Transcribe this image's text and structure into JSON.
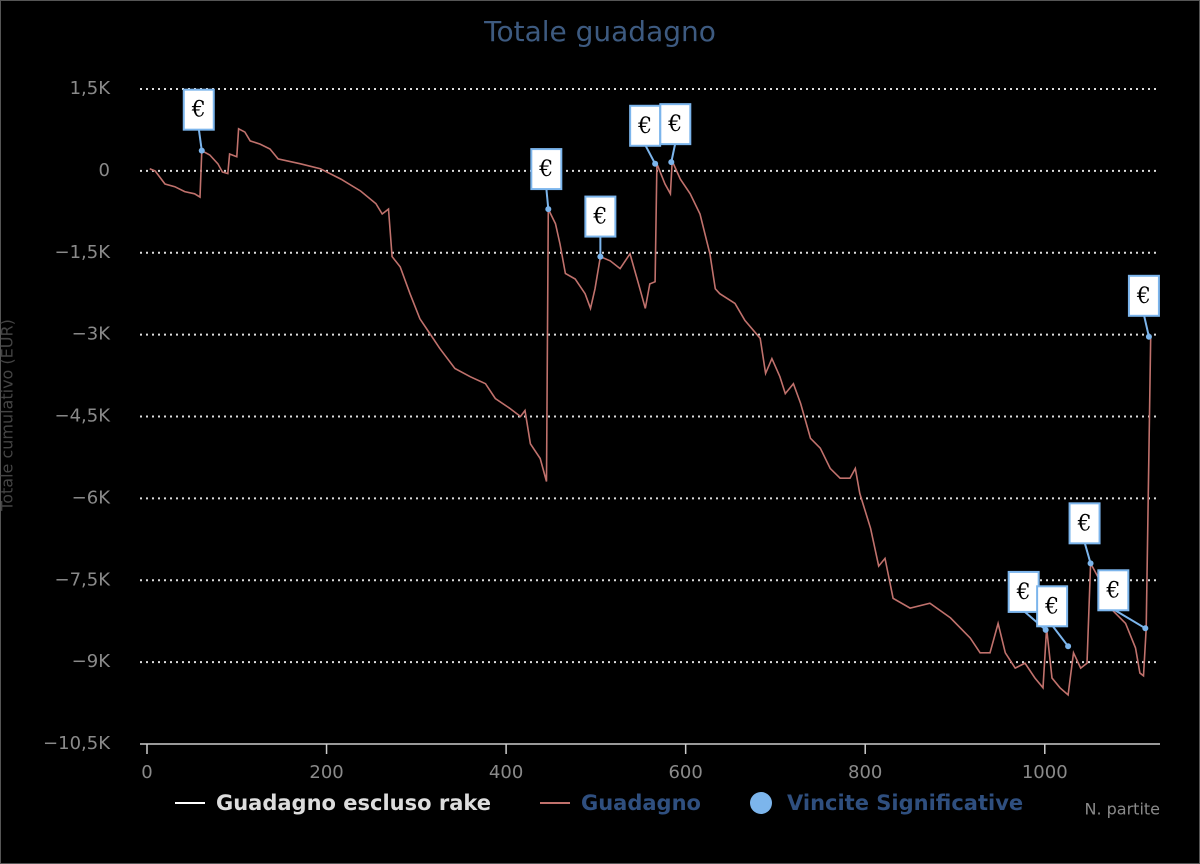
{
  "chart_data": {
    "type": "line",
    "title": "Totale guadagno",
    "y_label": "Totale cumulativo (EUR)",
    "x_label": "N. partite",
    "xlim": [
      0,
      1125
    ],
    "xticks": [
      0,
      200,
      400,
      600,
      800,
      1000
    ],
    "ylim": [
      -10500,
      1500
    ],
    "yticks": [
      {
        "value": 1500,
        "label": "1,5K"
      },
      0,
      {
        "value": -1500,
        "label": "−1,5K"
      },
      {
        "value": -3000,
        "label": "−3K"
      },
      {
        "value": -4500,
        "label": "−4,5K"
      },
      {
        "value": -6000,
        "label": "−6K"
      },
      {
        "value": -7500,
        "label": "−7,5K"
      },
      {
        "value": -9000,
        "label": "−9K"
      },
      {
        "value": -10500,
        "label": "−10,5K"
      }
    ],
    "grid": true,
    "series": [
      {
        "name": "Guadagno escluso rake",
        "color": "#ffffff"
      },
      {
        "name": "Guadagno",
        "color": "#c0716c",
        "x": [
          3,
          9,
          20,
          31,
          42,
          53,
          59,
          61,
          70,
          79,
          84,
          90,
          92,
          100,
          102,
          109,
          115,
          126,
          137,
          146,
          171,
          193,
          216,
          238,
          255,
          262,
          269,
          273,
          282,
          293,
          304,
          315,
          326,
          343,
          360,
          377,
          388,
          404,
          416,
          421,
          427,
          438,
          445,
          447,
          455,
          460,
          466,
          477,
          488,
          494,
          499,
          505,
          516,
          527,
          538,
          549,
          555,
          560,
          566,
          568,
          577,
          583,
          585,
          594,
          605,
          616,
          627,
          633,
          638,
          655,
          666,
          683,
          689,
          696,
          705,
          711,
          720,
          728,
          739,
          750,
          761,
          772,
          783,
          789,
          794,
          806,
          815,
          822,
          831,
          850,
          872,
          895,
          917,
          928,
          939,
          948,
          956,
          967,
          978,
          989,
          998,
          1002,
          1008,
          1017,
          1026,
          1032,
          1040,
          1047,
          1051,
          1060,
          1073,
          1090,
          1101,
          1106,
          1110,
          1113,
          1118
        ],
        "values": [
          40,
          0,
          -240,
          -290,
          -380,
          -420,
          -480,
          370,
          290,
          130,
          -20,
          -50,
          310,
          260,
          770,
          710,
          550,
          490,
          400,
          220,
          130,
          40,
          -150,
          -370,
          -600,
          -790,
          -700,
          -1570,
          -1760,
          -2250,
          -2710,
          -2980,
          -3250,
          -3620,
          -3770,
          -3900,
          -4170,
          -4350,
          -4500,
          -4390,
          -5000,
          -5270,
          -5690,
          -700,
          -970,
          -1340,
          -1880,
          -1980,
          -2250,
          -2520,
          -2160,
          -1570,
          -1650,
          -1790,
          -1520,
          -2160,
          -2520,
          -2070,
          -2030,
          130,
          -240,
          -420,
          180,
          -150,
          -420,
          -790,
          -1520,
          -2160,
          -2250,
          -2430,
          -2740,
          -3070,
          -3710,
          -3440,
          -3770,
          -4080,
          -3900,
          -4260,
          -4900,
          -5080,
          -5450,
          -5630,
          -5630,
          -5450,
          -5910,
          -6550,
          -7240,
          -7100,
          -7830,
          -8010,
          -7920,
          -8190,
          -8560,
          -8830,
          -8830,
          -8290,
          -8830,
          -9110,
          -9020,
          -9290,
          -9470,
          -8380,
          -9290,
          -9470,
          -9600,
          -8830,
          -9110,
          -9020,
          -7190,
          -7460,
          -8010,
          -8290,
          -8740,
          -9200,
          -9250,
          -8380,
          -3040
        ]
      },
      {
        "name": "Vincite Significative",
        "color": "#7cb5ec",
        "marker": "€",
        "x": [
          61,
          447,
          505,
          566,
          584,
          1001,
          1026,
          1051,
          1112,
          1116
        ],
        "values": [
          370,
          -700,
          -1570,
          130,
          160,
          -8410,
          -8710,
          -7190,
          -8380,
          -3040
        ]
      }
    ]
  }
}
